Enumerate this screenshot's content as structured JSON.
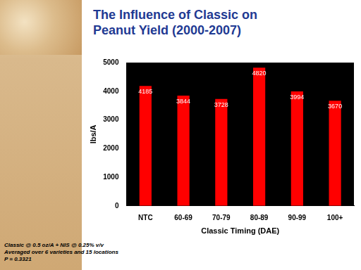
{
  "chart_data": {
    "type": "bar",
    "title": "The Influence of Classic on Peanut Yield (2000-2007)",
    "x_label": "Classic Timing (DAE)",
    "y_label": "lbs/A",
    "categories": [
      "NTC",
      "60-69",
      "70-79",
      "80-89",
      "90-99",
      "100+"
    ],
    "values": [
      4185,
      3844,
      3728,
      4820,
      3994,
      3670
    ],
    "color": "#ff0000",
    "ylim": [
      0,
      5000
    ],
    "yticks": [
      0,
      1000,
      2000,
      3000,
      4000,
      5000
    ],
    "grid": false,
    "data_labels": true,
    "annotations": [
      "Classic @ 0.5 oz/A + NIS @ 0.25% v/v",
      "Averaged over 6 varieties and 15 locations",
      "P = 0.3321"
    ]
  }
}
